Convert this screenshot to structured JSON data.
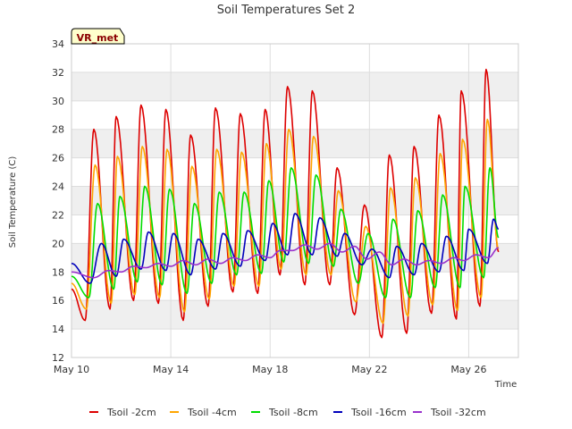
{
  "chart_data": {
    "type": "line",
    "title": "Soil Temperatures Set 2",
    "xlabel": "Time",
    "ylabel": "Soil Temperature (C)",
    "badge": "VR_met",
    "ylim": [
      12,
      34
    ],
    "yticks": [
      12,
      14,
      16,
      18,
      20,
      22,
      24,
      26,
      28,
      30,
      32,
      34
    ],
    "xlim": [
      0,
      18
    ],
    "xticks": [
      {
        "value": 0,
        "label": "May 10"
      },
      {
        "value": 4,
        "label": "May 14"
      },
      {
        "value": 8,
        "label": "May 18"
      },
      {
        "value": 12,
        "label": "May 22"
      },
      {
        "value": 16,
        "label": "May 26"
      }
    ],
    "grid": true,
    "legend_position": "bottom",
    "series": [
      {
        "name": "Tsoil -2cm",
        "color": "#dd0000",
        "peak_days": [
          0.9,
          1.8,
          2.8,
          3.8,
          4.8,
          5.8,
          6.8,
          7.8,
          8.7,
          9.7,
          10.7,
          11.8,
          12.8,
          13.8,
          14.8,
          15.7,
          16.7
        ],
        "peaks": [
          28.0,
          28.9,
          29.7,
          29.4,
          27.6,
          29.5,
          29.1,
          29.4,
          31.0,
          30.7,
          25.3,
          22.7,
          26.2,
          26.8,
          29.0,
          30.7,
          32.2
        ],
        "trough_days": [
          0.55,
          1.55,
          2.5,
          3.5,
          4.5,
          5.5,
          6.5,
          7.5,
          8.4,
          9.4,
          10.4,
          11.4,
          12.5,
          13.5,
          14.5,
          15.5,
          16.45
        ],
        "troughs": [
          14.6,
          15.4,
          16.0,
          15.8,
          14.6,
          15.6,
          16.6,
          16.5,
          17.8,
          17.1,
          17.1,
          15.0,
          13.4,
          13.7,
          15.1,
          14.7,
          15.6
        ],
        "start": 16.8,
        "end": 19.4
      },
      {
        "name": "Tsoil -4cm",
        "color": "#ffa500",
        "peak_days": [
          0.95,
          1.85,
          2.85,
          3.85,
          4.85,
          5.85,
          6.85,
          7.85,
          8.75,
          9.75,
          10.75,
          11.85,
          12.85,
          13.85,
          14.85,
          15.75,
          16.75
        ],
        "peaks": [
          25.5,
          26.1,
          26.8,
          26.6,
          25.4,
          26.6,
          26.4,
          27.0,
          28.0,
          27.5,
          23.7,
          21.2,
          23.9,
          24.6,
          26.3,
          27.3,
          28.7
        ],
        "trough_days": [
          0.6,
          1.6,
          2.55,
          3.55,
          4.55,
          5.55,
          6.55,
          7.55,
          8.45,
          9.45,
          10.45,
          11.45,
          12.55,
          13.55,
          14.55,
          15.55,
          16.5
        ],
        "troughs": [
          15.4,
          15.8,
          16.4,
          16.2,
          15.2,
          16.1,
          17.0,
          17.0,
          18.2,
          17.8,
          17.8,
          15.9,
          14.4,
          14.9,
          15.7,
          15.3,
          16.2
        ],
        "start": 17.2,
        "end": 19.6
      },
      {
        "name": "Tsoil -8cm",
        "color": "#00dd00",
        "peak_days": [
          1.05,
          1.95,
          2.95,
          3.95,
          4.95,
          5.95,
          6.95,
          7.95,
          8.85,
          9.85,
          10.85,
          11.95,
          12.95,
          13.95,
          14.95,
          15.85,
          16.85
        ],
        "peaks": [
          22.8,
          23.3,
          24.0,
          23.8,
          22.8,
          23.6,
          23.6,
          24.4,
          25.3,
          24.8,
          22.4,
          20.7,
          21.7,
          22.3,
          23.4,
          24.0,
          25.3
        ],
        "trough_days": [
          0.7,
          1.7,
          2.65,
          3.65,
          4.65,
          5.65,
          6.65,
          7.65,
          8.55,
          9.55,
          10.55,
          11.55,
          12.65,
          13.65,
          14.65,
          15.65,
          16.6
        ],
        "troughs": [
          16.2,
          16.8,
          17.3,
          17.1,
          16.5,
          17.2,
          17.8,
          17.9,
          18.7,
          18.6,
          18.4,
          17.2,
          16.2,
          16.2,
          16.9,
          16.9,
          17.6
        ],
        "start": 17.7,
        "end": 20.4
      },
      {
        "name": "Tsoil -16cm",
        "color": "#0000bb",
        "peak_days": [
          1.2,
          2.1,
          3.1,
          4.1,
          5.1,
          6.1,
          7.1,
          8.1,
          9.0,
          10.0,
          11.0,
          12.1,
          13.1,
          14.1,
          15.1,
          16.0,
          17.0
        ],
        "peaks": [
          20.0,
          20.3,
          20.8,
          20.7,
          20.3,
          20.7,
          20.9,
          21.4,
          22.1,
          21.8,
          20.7,
          19.6,
          19.8,
          20.0,
          20.5,
          21.0,
          21.7
        ],
        "trough_days": [
          0.75,
          1.8,
          2.8,
          3.8,
          4.8,
          5.8,
          6.8,
          7.8,
          8.7,
          9.7,
          10.7,
          11.7,
          12.8,
          13.8,
          14.8,
          15.8,
          16.75
        ],
        "troughs": [
          17.2,
          17.7,
          18.2,
          18.1,
          17.8,
          18.2,
          18.4,
          18.8,
          19.2,
          19.2,
          19.1,
          18.5,
          17.6,
          17.8,
          18.0,
          18.1,
          18.6
        ],
        "start": 18.6,
        "end": 21.0
      },
      {
        "name": "Tsoil -32cm",
        "color": "#9932cc",
        "peak_days": [
          1.5,
          2.5,
          3.5,
          4.5,
          5.5,
          6.5,
          7.5,
          8.4,
          9.4,
          10.4,
          11.4,
          12.4,
          13.4,
          14.4,
          15.4,
          16.3,
          17.2
        ],
        "peaks": [
          18.1,
          18.4,
          18.6,
          18.8,
          18.9,
          19.0,
          19.2,
          19.5,
          19.9,
          20.0,
          19.8,
          19.4,
          18.9,
          18.8,
          19.0,
          19.2,
          19.7
        ],
        "trough_days": [
          0.9,
          2.0,
          3.0,
          4.0,
          5.0,
          6.0,
          7.0,
          8.0,
          8.9,
          9.9,
          10.9,
          11.9,
          12.9,
          13.9,
          14.9,
          15.8,
          16.8
        ],
        "troughs": [
          17.6,
          18.0,
          18.3,
          18.4,
          18.5,
          18.6,
          18.8,
          19.0,
          19.5,
          19.6,
          19.4,
          18.9,
          18.5,
          18.5,
          18.6,
          18.8,
          19.0
        ],
        "start": 18.0,
        "end": 19.7
      }
    ]
  }
}
